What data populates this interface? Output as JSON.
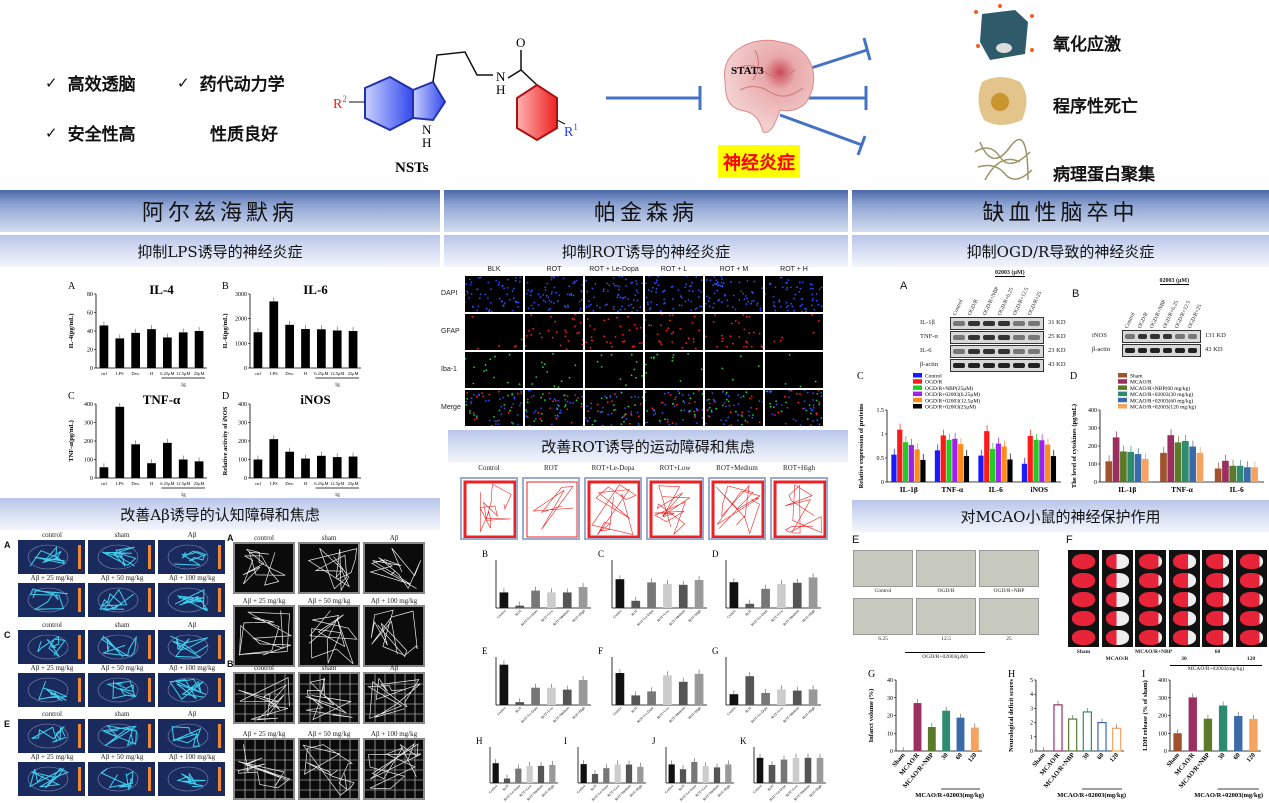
{
  "top": {
    "advantages": [
      "高效透脑",
      "药代动力学",
      "安全性高",
      "性质良好"
    ],
    "check_mark": "✓",
    "compound_label": "NSTs",
    "substituents": {
      "r1": "R",
      "r1_sup": "1",
      "r2": "R",
      "r2_sup": "2",
      "nh": "N",
      "h": "H",
      "o": "O"
    },
    "target": "STAT3",
    "center_label": "神经炎症",
    "effects": [
      "氧化应激",
      "程序性死亡",
      "病理蛋白聚集"
    ],
    "colors": {
      "arrow": "#4472c4",
      "highlight": "#ffff00",
      "center_text": "#ff0000",
      "indole": "#3355ee",
      "benzene": "#ee3333"
    }
  },
  "columns": [
    {
      "title": "阿尔兹海默病",
      "sub1": "抑制LPS诱导的神经炎症",
      "sub2": "改善Aβ诱导的认知障碍和焦虑"
    },
    {
      "title": "帕金森病",
      "sub1": "抑制ROT诱导的神经炎症",
      "sub2": "改善ROT诱导的运动障碍和焦虑"
    },
    {
      "title": "缺血性脑卒中",
      "sub1": "抑制OGD/R导致的神经炎症",
      "sub2": "对MCAO小鼠的神经保护作用"
    }
  ],
  "ad": {
    "panel_letters": [
      "A",
      "B",
      "C",
      "D"
    ],
    "maze_letters": [
      "A",
      "C",
      "E"
    ],
    "of_letters": [
      "A",
      "B"
    ],
    "groups": [
      "control",
      "sham",
      "Aβ",
      "Aβ + 25 mg/kg",
      "Aβ + 50 mg/kg",
      "Aβ + 100 mg/kg"
    ]
  },
  "pd": {
    "fluor_cols": [
      "BLK",
      "ROT",
      "ROT + Le-Dopa",
      "ROT + L",
      "ROT + M",
      "ROT + H"
    ],
    "fluor_rows": [
      "DAPI",
      "GFAP",
      "Iba-1",
      "Merge"
    ],
    "fluor_colors": [
      "#2a4dff",
      "#ff2020",
      "#20d040",
      "#6060ff"
    ],
    "of_groups": [
      "Control",
      "ROT",
      "ROT+Le-Dopa",
      "ROT+Low",
      "ROT+Medium",
      "ROT+High"
    ]
  },
  "stroke": {
    "wb_a": {
      "letter": "A",
      "header": "02003 (μM)",
      "lanes": [
        "Control",
        "OGD/R",
        "OGD/R+NBP",
        "OGD/R+6.25",
        "OGD/R+12.5",
        "OGD/R+25"
      ],
      "bands": [
        {
          "name": "IL-1β",
          "size": "31 KD"
        },
        {
          "name": "TNF-α",
          "size": "25 KD"
        },
        {
          "name": "IL-6",
          "size": "23 KD"
        },
        {
          "name": "β-actin",
          "size": "43 KD"
        }
      ]
    },
    "wb_b": {
      "letter": "B",
      "header": "02003 (μM)",
      "lanes": [
        "Control",
        "OGD/R",
        "OGD/R+NBP",
        "OGD/R+6.25",
        "OGD/R+12.5",
        "OGD/R+25"
      ],
      "bands": [
        {
          "name": "iNOS",
          "size": "131 KD"
        },
        {
          "name": "β-actin",
          "size": "43 KD"
        }
      ]
    },
    "cells": {
      "letter": "E",
      "labels": [
        "Control",
        "OGD/R",
        "OGD/R+NBP",
        "6.25",
        "12.5",
        "25"
      ],
      "group": "OGD/R+02003(μM)"
    },
    "ttc": {
      "letter": "F",
      "labels": [
        "Sham",
        "MCAO/R",
        "MCAO/R+NBP",
        "30",
        "60",
        "120"
      ],
      "group": "MCAO/R+02003(mg/kg)"
    }
  },
  "chart_data": [
    {
      "id": "ad-il4",
      "letter": "A",
      "type": "bar",
      "title": "IL-4",
      "ylabel": "IL-4(pg/mL)",
      "categories": [
        "ctrl",
        "LPS",
        "Dex.",
        "H",
        "6.25μM",
        "12.5μM",
        "25μM"
      ],
      "group_label": "1g",
      "ylim": [
        0,
        80
      ],
      "yticks": [
        0,
        20,
        40,
        60,
        80
      ],
      "series": [
        {
          "values": [
            46,
            32,
            38,
            42,
            33,
            38.5,
            40
          ]
        }
      ]
    },
    {
      "id": "ad-il6",
      "letter": "B",
      "type": "bar",
      "title": "IL-6",
      "ylabel": "IL-6(pg/mL)",
      "categories": [
        "ctrl",
        "LPS",
        "Dex.",
        "H",
        "6.25μM",
        "12.5μM",
        "25μM"
      ],
      "group_label": "1g",
      "ylim": [
        0,
        3000
      ],
      "yticks": [
        0,
        1000,
        2000,
        3000
      ],
      "series": [
        {
          "values": [
            1450,
            2700,
            1750,
            1580,
            1570,
            1520,
            1500
          ]
        }
      ]
    },
    {
      "id": "ad-tnf",
      "letter": "C",
      "type": "bar",
      "title": "TNF-α",
      "ylabel": "TNF-α(pg/mL)",
      "categories": [
        "ctrl",
        "LPS",
        "Dex.",
        "H",
        "6.25μM",
        "12.5μM",
        "25μM"
      ],
      "group_label": "1g",
      "ylim": [
        0,
        400
      ],
      "yticks": [
        0,
        100,
        200,
        300,
        400
      ],
      "series": [
        {
          "values": [
            58,
            385,
            182,
            80,
            190,
            100,
            90
          ]
        }
      ]
    },
    {
      "id": "ad-inos",
      "letter": "D",
      "type": "bar",
      "title": "iNOS",
      "ylabel": "Relative activity of iNOS",
      "categories": [
        "ctrl",
        "LPS",
        "Dex.",
        "H",
        "6.25μM",
        "12.5μM",
        "25μM"
      ],
      "group_label": "1g",
      "ylim": [
        0,
        400
      ],
      "yticks": [
        0,
        100,
        200,
        300,
        400
      ],
      "series": [
        {
          "values": [
            100,
            210,
            142,
            105,
            120,
            113,
            116
          ]
        }
      ]
    },
    {
      "id": "pd-b",
      "letter": "B",
      "type": "bar",
      "categories": [
        "Control",
        "ROT",
        "ROT+Le-Dopa",
        "ROT+Low",
        "ROT+Medium",
        "ROT+High"
      ],
      "ylim": [
        0,
        4000
      ],
      "series": [
        {
          "values": [
            1300,
            200,
            1450,
            1300,
            1300,
            1750
          ]
        }
      ]
    },
    {
      "id": "pd-c",
      "letter": "C",
      "type": "bar",
      "categories": [
        "Control",
        "ROT",
        "ROT+Le-Dopa",
        "ROT+Low",
        "ROT+Medium",
        "ROT+High"
      ],
      "ylim": [
        0,
        3000
      ],
      "series": [
        {
          "values": [
            1800,
            450,
            1600,
            1500,
            1450,
            1750
          ]
        }
      ]
    },
    {
      "id": "pd-d",
      "letter": "D",
      "type": "bar",
      "categories": [
        "Control",
        "ROT",
        "ROT+Le-Dopa",
        "ROT+Low",
        "ROT+Medium",
        "ROT+High"
      ],
      "ylim": [
        0,
        8
      ],
      "series": [
        {
          "values": [
            4.3,
            0.7,
            3.2,
            4.0,
            4.2,
            5.1
          ]
        }
      ]
    },
    {
      "id": "pd-e",
      "letter": "E",
      "type": "bar",
      "categories": [
        "Control",
        "ROT",
        "ROT+Le-Dopa",
        "ROT+Low",
        "ROT+Medium",
        "ROT+High"
      ],
      "ylim": [
        0,
        250
      ],
      "series": [
        {
          "values": [
            210,
            15,
            90,
            90,
            80,
            130
          ]
        }
      ]
    },
    {
      "id": "pd-f",
      "letter": "F",
      "type": "bar",
      "categories": [
        "Control",
        "ROT",
        "ROT+Le-Dopa",
        "ROT+Low",
        "ROT+Medium",
        "ROT+High"
      ],
      "ylim": [
        0,
        60
      ],
      "series": [
        {
          "values": [
            40,
            12,
            17,
            37,
            29,
            39
          ]
        }
      ]
    },
    {
      "id": "pd-g",
      "letter": "G",
      "type": "bar",
      "categories": [
        "Control",
        "ROT",
        "ROT+Le-Dopa",
        "ROT+Low",
        "ROT+Medium",
        "ROT+High"
      ],
      "ylim": [
        0,
        20
      ],
      "series": [
        {
          "values": [
            4.5,
            12,
            5,
            6.5,
            6,
            6.5
          ]
        }
      ]
    },
    {
      "id": "pd-h",
      "letter": "H",
      "type": "bar",
      "categories": [
        "Control",
        "ROT",
        "ROT+Le-Dopa",
        "ROT+Low",
        "ROT+Medium",
        "ROT+High"
      ],
      "ylim": [
        0,
        4
      ],
      "series": [
        {
          "values": [
            2.2,
            0.5,
            1.6,
            1.9,
            1.9,
            2.0
          ]
        }
      ]
    },
    {
      "id": "pd-i",
      "letter": "I",
      "type": "bar",
      "categories": [
        "Control",
        "ROT",
        "ROT+Le-Dopa",
        "ROT+Low",
        "ROT+Medium",
        "ROT+High"
      ],
      "ylim": [
        0,
        8
      ],
      "series": [
        {
          "values": [
            4.2,
            2.0,
            3.3,
            4.1,
            4.1,
            3.6
          ]
        }
      ]
    },
    {
      "id": "pd-j",
      "letter": "J",
      "type": "bar",
      "categories": [
        "Control",
        "ROT",
        "ROT+Le-Dopa",
        "ROT+Low",
        "ROT+Medium",
        "ROT+High"
      ],
      "ylim": [
        0,
        6
      ],
      "series": [
        {
          "values": [
            3.1,
            2.3,
            3.5,
            2.8,
            2.6,
            3.1
          ]
        }
      ]
    },
    {
      "id": "pd-k",
      "letter": "K",
      "type": "bar",
      "categories": [
        "Control",
        "ROT",
        "ROT+Le-Dopa",
        "ROT+Low",
        "ROT+Medium",
        "ROT+High"
      ],
      "ylim": [
        0,
        6
      ],
      "series": [
        {
          "values": [
            4.2,
            3.0,
            3.9,
            4.2,
            4.2,
            4.2
          ]
        }
      ]
    },
    {
      "id": "st-c",
      "letter": "C",
      "type": "bar",
      "ylabel": "Relative expression of proteins",
      "categories": [
        "IL-1β",
        "TNF-α",
        "IL-6",
        "iNOS"
      ],
      "ylim": [
        0,
        1.5
      ],
      "yticks": [
        0,
        0.5,
        1.0,
        1.5
      ],
      "legend": "top",
      "series": [
        {
          "name": "Control",
          "color": "#1a1aff",
          "values": [
            0.57,
            0.66,
            0.55,
            0.38
          ]
        },
        {
          "name": "OGD/R",
          "color": "#ff1a1a",
          "values": [
            1.09,
            0.97,
            1.06,
            0.96
          ]
        },
        {
          "name": "OGD/R+NBP(25μM)",
          "color": "#22cc22",
          "values": [
            0.83,
            0.88,
            0.69,
            0.88
          ]
        },
        {
          "name": "OGD/R+02003(6.25μM)",
          "color": "#a020f0",
          "values": [
            0.77,
            0.9,
            0.8,
            0.87
          ]
        },
        {
          "name": "OGD/R+02003(12.5μM)",
          "color": "#ff8c1a",
          "values": [
            0.68,
            0.79,
            0.74,
            0.78
          ]
        },
        {
          "name": "OGD/R+02003(25μM)",
          "color": "#000000",
          "values": [
            0.46,
            0.54,
            0.47,
            0.54
          ]
        }
      ]
    },
    {
      "id": "st-d",
      "letter": "D",
      "type": "bar",
      "ylabel": "The level of cytokines (pg/mL)",
      "categories": [
        "IL-1β",
        "TNF-α",
        "IL-6"
      ],
      "ylim": [
        0,
        400
      ],
      "yticks": [
        0,
        100,
        200,
        300,
        400
      ],
      "legend": "top",
      "series": [
        {
          "name": "Sham",
          "color": "#a0522d",
          "values": [
            115,
            162,
            75
          ]
        },
        {
          "name": "MCAO/R",
          "color": "#9b3060",
          "values": [
            248,
            260,
            118
          ]
        },
        {
          "name": "MCAO/R+NBP(60 mg/kg)",
          "color": "#5b7a2a",
          "values": [
            170,
            220,
            90
          ]
        },
        {
          "name": "MCAO/R+02003(30 mg/kg)",
          "color": "#2e8b6e",
          "values": [
            167,
            228,
            90
          ]
        },
        {
          "name": "MCAO/R+02003(60 mg/kg)",
          "color": "#3a6aa8",
          "values": [
            155,
            197,
            82
          ]
        },
        {
          "name": "MCAO/R+02003(120 mg/kg)",
          "color": "#f4a460",
          "values": [
            128,
            162,
            82
          ]
        }
      ]
    },
    {
      "id": "st-g",
      "letter": "G",
      "type": "bar",
      "ylabel": "Infarct volume (%)",
      "categories": [
        "Sham",
        "MCAO/R",
        "MCAO/R+NBP",
        "30",
        "60",
        "120"
      ],
      "group_label": "MCAO/R+02003(mg/kg)",
      "ylim": [
        0,
        40
      ],
      "yticks": [
        0,
        10,
        20,
        30,
        40
      ],
      "series": [
        {
          "values": [
            0,
            27,
            13.5,
            22.7,
            18.8,
            13.2
          ]
        }
      ]
    },
    {
      "id": "st-h",
      "letter": "H",
      "type": "bar",
      "ylabel": "Neurological deficit scores",
      "categories": [
        "Sham",
        "MCAO/R",
        "MCAO/R+NBP",
        "30",
        "60",
        "120"
      ],
      "group_label": "MCAO/R+02003(mg/kg)",
      "ylim": [
        0,
        5
      ],
      "yticks": [
        0,
        1,
        2,
        3,
        4,
        5
      ],
      "series": [
        {
          "values": [
            0,
            3.25,
            2.25,
            2.75,
            2.0,
            1.6
          ]
        }
      ]
    },
    {
      "id": "st-i",
      "letter": "I",
      "type": "bar",
      "ylabel": "LDH release (% of sham)",
      "categories": [
        "Sham",
        "MCAO/R",
        "MCAO/R+NBP",
        "30",
        "60",
        "120"
      ],
      "group_label": "MCAO/R+02003(mg/kg)",
      "ylim": [
        0,
        400
      ],
      "yticks": [
        0,
        100,
        200,
        300,
        400
      ],
      "series": [
        {
          "values": [
            100,
            302,
            182,
            256,
            197,
            181
          ]
        }
      ]
    }
  ]
}
